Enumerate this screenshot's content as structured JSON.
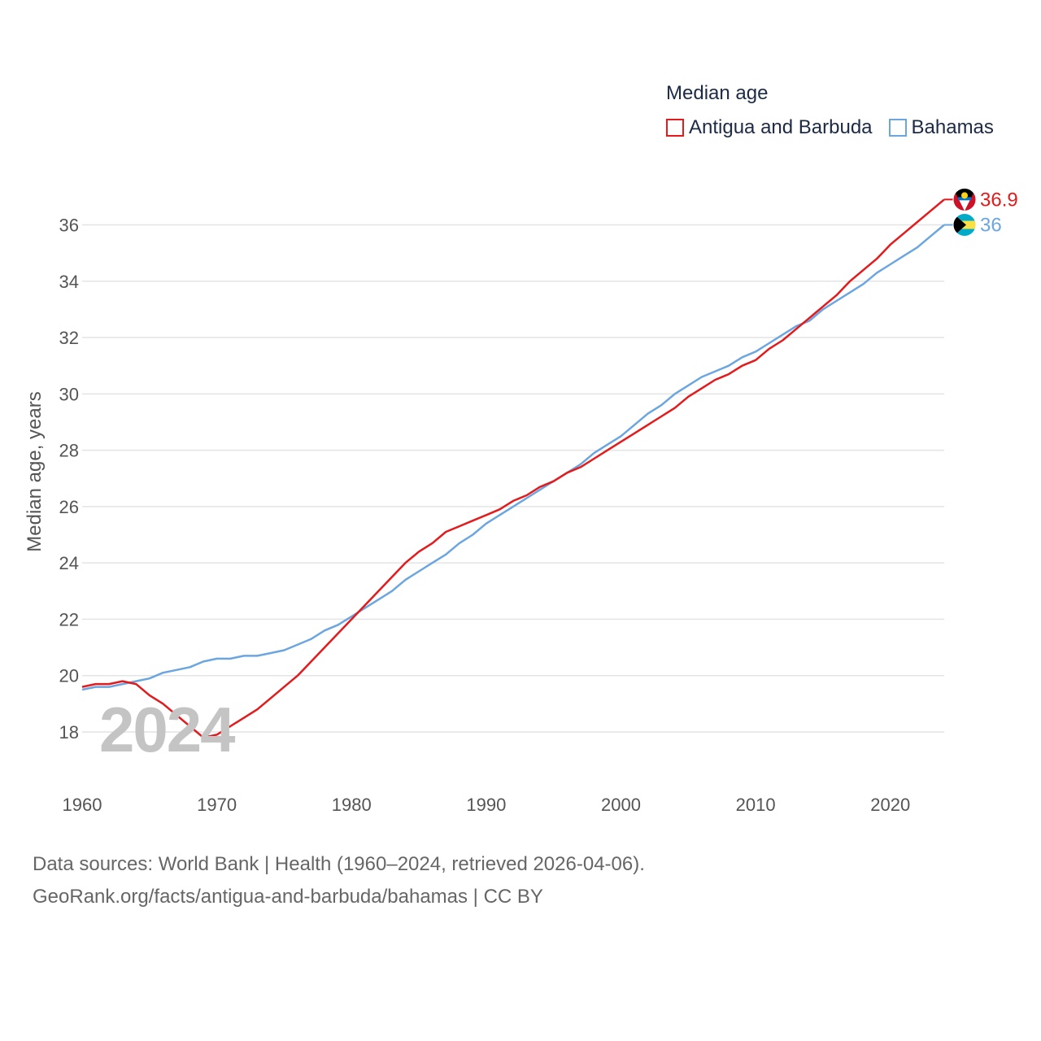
{
  "chart_data": {
    "type": "line",
    "legend_title": "Median age",
    "ylabel": "Median age, years",
    "xlabel": "",
    "watermark_year": "2024",
    "xlim": [
      1960,
      2024
    ],
    "ylim": [
      16.7,
      37.4
    ],
    "x_ticks": [
      1960,
      1970,
      1980,
      1990,
      2000,
      2010,
      2020
    ],
    "y_ticks": [
      18,
      20,
      22,
      24,
      26,
      28,
      30,
      32,
      34,
      36
    ],
    "x": [
      1960,
      1961,
      1962,
      1963,
      1964,
      1965,
      1966,
      1967,
      1968,
      1969,
      1970,
      1971,
      1972,
      1973,
      1974,
      1975,
      1976,
      1977,
      1978,
      1979,
      1980,
      1981,
      1982,
      1983,
      1984,
      1985,
      1986,
      1987,
      1988,
      1989,
      1990,
      1991,
      1992,
      1993,
      1994,
      1995,
      1996,
      1997,
      1998,
      1999,
      2000,
      2001,
      2002,
      2003,
      2004,
      2005,
      2006,
      2007,
      2008,
      2009,
      2010,
      2011,
      2012,
      2013,
      2014,
      2015,
      2016,
      2017,
      2018,
      2019,
      2020,
      2021,
      2022,
      2023,
      2024
    ],
    "series": [
      {
        "name": "Antigua and Barbuda",
        "color": "#e41a1c",
        "end_label": "36.9",
        "flag": "antigua-and-barbuda-flag-icon",
        "values": [
          19.6,
          19.7,
          19.7,
          19.8,
          19.7,
          19.3,
          19.0,
          18.6,
          18.2,
          17.8,
          17.9,
          18.2,
          18.5,
          18.8,
          19.2,
          19.6,
          20.0,
          20.5,
          21.0,
          21.5,
          22.0,
          22.5,
          23.0,
          23.5,
          24.0,
          24.4,
          24.7,
          25.1,
          25.3,
          25.5,
          25.7,
          25.9,
          26.2,
          26.4,
          26.7,
          26.9,
          27.2,
          27.4,
          27.7,
          28.0,
          28.3,
          28.6,
          28.9,
          29.2,
          29.5,
          29.9,
          30.2,
          30.5,
          30.7,
          31.0,
          31.2,
          31.6,
          31.9,
          32.3,
          32.7,
          33.1,
          33.5,
          34.0,
          34.4,
          34.8,
          35.3,
          35.7,
          36.1,
          36.5,
          36.9
        ]
      },
      {
        "name": "Bahamas",
        "color": "#6ba6e0",
        "end_label": "36",
        "flag": "bahamas-flag-icon",
        "values": [
          19.5,
          19.6,
          19.6,
          19.7,
          19.8,
          19.9,
          20.1,
          20.2,
          20.3,
          20.5,
          20.6,
          20.6,
          20.7,
          20.7,
          20.8,
          20.9,
          21.1,
          21.3,
          21.6,
          21.8,
          22.1,
          22.4,
          22.7,
          23.0,
          23.4,
          23.7,
          24.0,
          24.3,
          24.7,
          25.0,
          25.4,
          25.7,
          26.0,
          26.3,
          26.6,
          26.9,
          27.2,
          27.5,
          27.9,
          28.2,
          28.5,
          28.9,
          29.3,
          29.6,
          30.0,
          30.3,
          30.6,
          30.8,
          31.0,
          31.3,
          31.5,
          31.8,
          32.1,
          32.4,
          32.6,
          33.0,
          33.3,
          33.6,
          33.9,
          34.3,
          34.6,
          34.9,
          35.2,
          35.6,
          36.0
        ]
      }
    ]
  },
  "source": {
    "line1": "Data sources: World Bank | Health (1960–2024, retrieved 2026-04-06).",
    "line2": "GeoRank.org/facts/antigua-and-barbuda/bahamas | CC BY"
  }
}
